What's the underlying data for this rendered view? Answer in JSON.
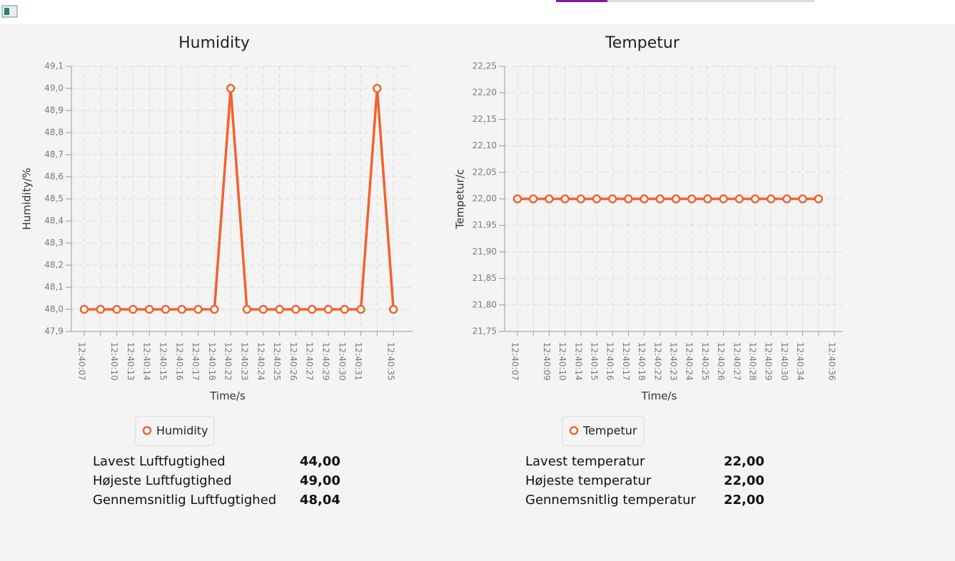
{
  "chart_data": [
    {
      "type": "line",
      "title": "Humidity",
      "x_label": "Time/s",
      "y_label": "Humidity/%",
      "categories": [
        "12:40:07",
        null,
        "12:40:10",
        "12:40:13",
        "12:40:14",
        "12:40:15",
        "12:40:16",
        "12:40:17",
        "12:40:18",
        "12:40:22",
        "12:40:23",
        "12:40:24",
        "12:40:25",
        "12:40:26",
        "12:40:27",
        "12:40:29",
        "12:40:30",
        "12:40:31",
        null,
        "12:40:35"
      ],
      "series": [
        {
          "name": "Humidity",
          "color": "#f3622d",
          "values": [
            48.0,
            48.0,
            48.0,
            48.0,
            48.0,
            48.0,
            48.0,
            48.0,
            48.0,
            49.0,
            48.0,
            48.0,
            48.0,
            48.0,
            48.0,
            48.0,
            48.0,
            48.0,
            49.0,
            48.0
          ]
        }
      ],
      "ylim": [
        47.9,
        49.1
      ],
      "yticks": [
        {
          "value": 47.9,
          "label": "47,9"
        },
        {
          "value": 48.0,
          "label": "48,0"
        },
        {
          "value": 48.1,
          "label": "48,1"
        },
        {
          "value": 48.2,
          "label": "48,2"
        },
        {
          "value": 48.3,
          "label": "48,3"
        },
        {
          "value": 48.4,
          "label": "48,4"
        },
        {
          "value": 48.5,
          "label": "48,5"
        },
        {
          "value": 48.6,
          "label": "48,6"
        },
        {
          "value": 48.7,
          "label": "48,7"
        },
        {
          "value": 48.8,
          "label": "48,8"
        },
        {
          "value": 48.9,
          "label": "48,9"
        },
        {
          "value": 49.0,
          "label": "49,0"
        },
        {
          "value": 49.1,
          "label": "49,1"
        }
      ],
      "grid": true,
      "legend": "bottom"
    },
    {
      "type": "line",
      "title": "Tempetur",
      "x_label": "Time/s",
      "y_label": "Tempetur/c",
      "categories": [
        "12:40:07",
        null,
        "12:40:09",
        "12:40:10",
        "12:40:14",
        "12:40:15",
        "12:40:16",
        "12:40:17",
        "12:40:18",
        "12:40:22",
        "12:40:23",
        "12:40:24",
        "12:40:25",
        "12:40:26",
        "12:40:27",
        "12:40:28",
        "12:40:29",
        "12:40:30",
        "12:40:34",
        null,
        "12:40:36"
      ],
      "series": [
        {
          "name": "Tempetur",
          "color": "#f3622d",
          "values": [
            22.0,
            22.0,
            22.0,
            22.0,
            22.0,
            22.0,
            22.0,
            22.0,
            22.0,
            22.0,
            22.0,
            22.0,
            22.0,
            22.0,
            22.0,
            22.0,
            22.0,
            22.0,
            22.0,
            22.0,
            null
          ]
        }
      ],
      "ylim": [
        21.75,
        22.25
      ],
      "yticks": [
        {
          "value": 21.75,
          "label": "21,75"
        },
        {
          "value": 21.8,
          "label": "21,80"
        },
        {
          "value": 21.85,
          "label": "21,85"
        },
        {
          "value": 21.9,
          "label": "21,90"
        },
        {
          "value": 21.95,
          "label": "21,95"
        },
        {
          "value": 22.0,
          "label": "22,00"
        },
        {
          "value": 22.05,
          "label": "22,05"
        },
        {
          "value": 22.1,
          "label": "22,10"
        },
        {
          "value": 22.15,
          "label": "22,15"
        },
        {
          "value": 22.2,
          "label": "22,20"
        },
        {
          "value": 22.25,
          "label": "22,25"
        }
      ],
      "grid": true,
      "legend": "bottom"
    }
  ],
  "stats": [
    {
      "rows": [
        {
          "label": "Lavest Luftfugtighed",
          "value": "44,00"
        },
        {
          "label": "Højeste Luftfugtighed",
          "value": "49,00"
        },
        {
          "label": "Gennemsnitlig Luftfugtighed",
          "value": "48,04"
        }
      ]
    },
    {
      "rows": [
        {
          "label": "Lavest temperatur",
          "value": "22,00"
        },
        {
          "label": "Højeste temperatur",
          "value": "22,00"
        },
        {
          "label": "Gennemsnitlig temperatur",
          "value": "22,00"
        }
      ]
    }
  ]
}
